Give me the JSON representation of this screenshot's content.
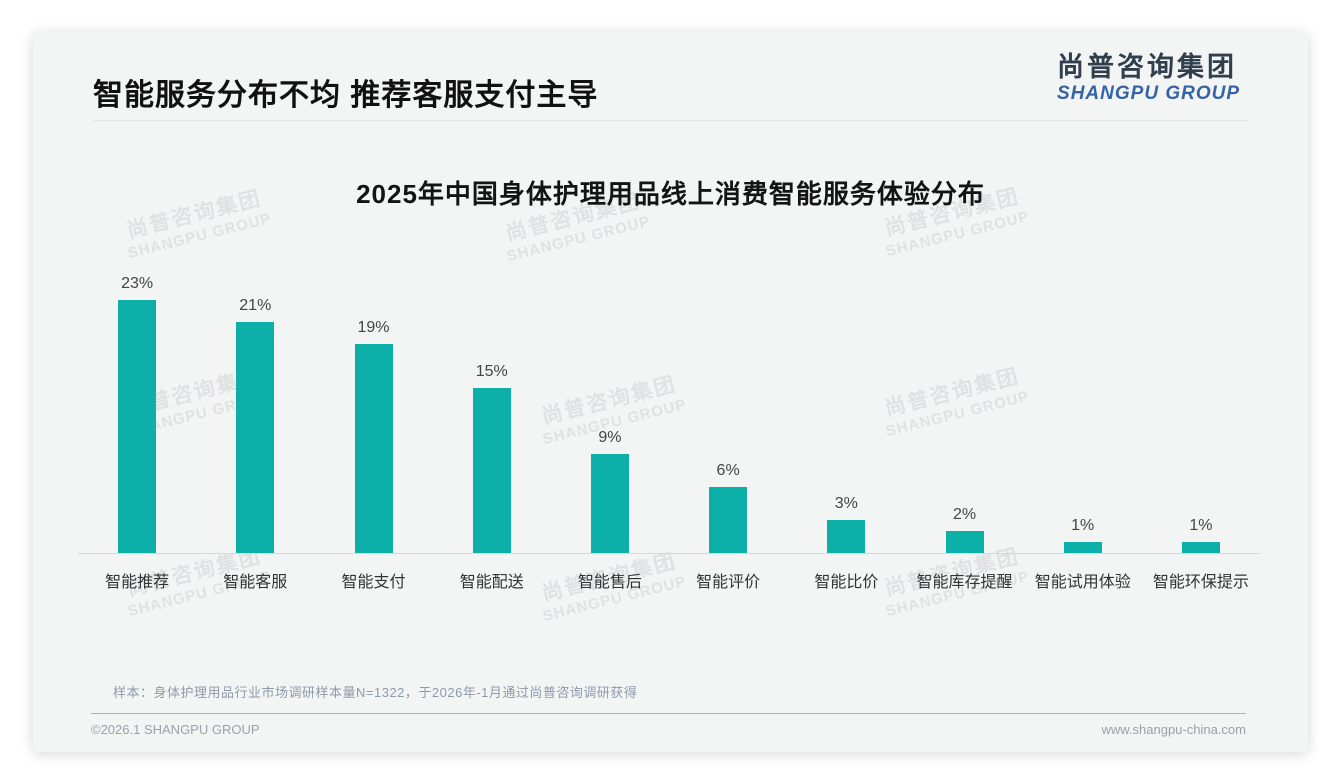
{
  "page": {
    "header_title": "智能服务分布不均 推荐客服支付主导",
    "logo": {
      "cn": "尚普咨询集团",
      "en": "SHANGPU GROUP"
    },
    "watermark": {
      "cn": "尚普咨询集团",
      "en": "SHANGPU GROUP"
    },
    "sample_note": "样本：身体护理用品行业市场调研样本量N=1322，于2026年-1月通过尚普咨询调研获得",
    "footer_left": "©2026.1 SHANGPU GROUP",
    "footer_right": "www.shangpu-china.com"
  },
  "chart_data": {
    "type": "bar",
    "title": "2025年中国身体护理用品线上消费智能服务体验分布",
    "categories": [
      "智能推荐",
      "智能客服",
      "智能支付",
      "智能配送",
      "智能售后",
      "智能评价",
      "智能比价",
      "智能库存提醒",
      "智能试用体验",
      "智能环保提示"
    ],
    "values": [
      23,
      21,
      19,
      15,
      9,
      6,
      3,
      2,
      1,
      1
    ],
    "value_labels": [
      "23%",
      "21%",
      "19%",
      "15%",
      "9%",
      "6%",
      "3%",
      "2%",
      "1%",
      "1%"
    ],
    "unit": "%",
    "bar_color": "#0cb0a9",
    "ylim": [
      0,
      25
    ],
    "grid": false,
    "legend": false,
    "xlabel": "",
    "ylabel": ""
  }
}
